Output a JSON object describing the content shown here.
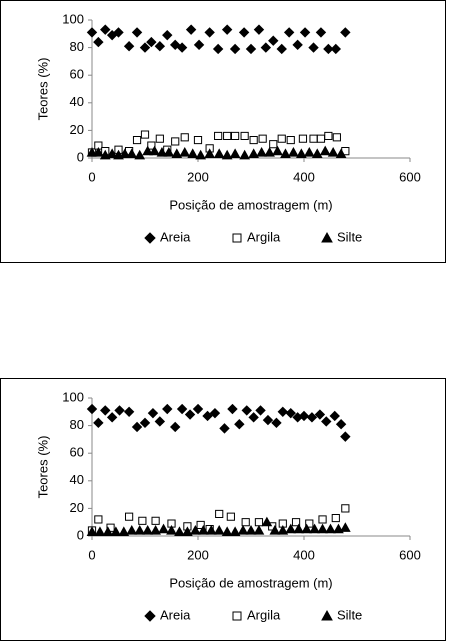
{
  "chart_data": [
    {
      "type": "scatter",
      "xlabel": "Posição de amostragem (m)",
      "ylabel": "Teores (%)",
      "xlim": [
        0,
        600
      ],
      "xticks": [
        0,
        200,
        400,
        600
      ],
      "ylim": [
        0,
        100
      ],
      "yticks": [
        0,
        20,
        40,
        60,
        80,
        100
      ],
      "grid": false,
      "legend": "bottom",
      "series": [
        {
          "name": "Areia",
          "color": "#000000",
          "marker": "diamond",
          "x": [
            0,
            12,
            25,
            38,
            50,
            70,
            85,
            100,
            112,
            128,
            142,
            157,
            170,
            187,
            202,
            222,
            238,
            255,
            270,
            287,
            300,
            315,
            328,
            342,
            358,
            372,
            388,
            402,
            418,
            432,
            446,
            460,
            478
          ],
          "values": [
            91,
            84,
            93,
            89,
            91,
            81,
            91,
            80,
            84,
            81,
            89,
            82,
            80,
            93,
            82,
            91,
            79,
            93,
            79,
            91,
            79,
            93,
            80,
            85,
            79,
            91,
            82,
            91,
            80,
            91,
            79,
            79,
            91
          ]
        },
        {
          "name": "Argila",
          "color": "#000000",
          "marker": "square",
          "x": [
            0,
            12,
            25,
            50,
            70,
            85,
            100,
            112,
            128,
            142,
            157,
            175,
            200,
            222,
            238,
            255,
            270,
            288,
            305,
            322,
            342,
            358,
            375,
            398,
            418,
            432,
            446,
            462,
            478
          ],
          "values": [
            4,
            9,
            5,
            6,
            5,
            13,
            17,
            9,
            14,
            6,
            12,
            15,
            13,
            7,
            16,
            16,
            16,
            16,
            13,
            14,
            10,
            14,
            13,
            14,
            14,
            14,
            16,
            15,
            5
          ]
        },
        {
          "name": "Silte",
          "color": "#000000",
          "marker": "triangle",
          "x": [
            0,
            12,
            25,
            38,
            50,
            62,
            75,
            90,
            105,
            118,
            132,
            145,
            160,
            175,
            190,
            205,
            222,
            240,
            255,
            270,
            288,
            305,
            320,
            335,
            350,
            365,
            380,
            395,
            410,
            425,
            440,
            455,
            470
          ],
          "values": [
            4,
            4,
            2,
            3,
            2,
            3,
            3,
            2,
            5,
            5,
            4,
            4,
            3,
            4,
            3,
            2,
            3,
            3,
            2,
            3,
            2,
            3,
            4,
            4,
            5,
            3,
            4,
            3,
            4,
            3,
            5,
            4,
            3
          ]
        }
      ]
    },
    {
      "type": "scatter",
      "xlabel": "Posição de amostragem (m)",
      "ylabel": "Teores (%)",
      "xlim": [
        0,
        600
      ],
      "xticks": [
        0,
        200,
        400,
        600
      ],
      "ylim": [
        0,
        100
      ],
      "yticks": [
        0,
        20,
        40,
        60,
        80,
        100
      ],
      "grid": false,
      "legend": "bottom",
      "series": [
        {
          "name": "Areia",
          "color": "#000000",
          "marker": "diamond",
          "x": [
            0,
            12,
            25,
            38,
            52,
            70,
            85,
            100,
            115,
            128,
            142,
            157,
            170,
            185,
            200,
            218,
            232,
            250,
            265,
            278,
            292,
            305,
            318,
            332,
            348,
            360,
            375,
            388,
            400,
            415,
            430,
            442,
            458,
            470,
            478
          ],
          "values": [
            92,
            82,
            91,
            86,
            91,
            90,
            79,
            82,
            89,
            83,
            92,
            79,
            92,
            88,
            92,
            87,
            89,
            78,
            92,
            81,
            91,
            86,
            91,
            84,
            82,
            90,
            89,
            86,
            87,
            86,
            88,
            83,
            87,
            81,
            72
          ]
        },
        {
          "name": "Argila",
          "color": "#000000",
          "marker": "square",
          "x": [
            0,
            12,
            35,
            70,
            95,
            120,
            150,
            180,
            205,
            222,
            240,
            262,
            290,
            315,
            340,
            360,
            385,
            410,
            435,
            460,
            478
          ],
          "values": [
            4,
            12,
            6,
            14,
            11,
            11,
            9,
            7,
            8,
            5,
            16,
            14,
            10,
            10,
            7,
            9,
            10,
            9,
            12,
            13,
            20
          ]
        },
        {
          "name": "Silte",
          "color": "#000000",
          "marker": "triangle",
          "x": [
            0,
            15,
            30,
            45,
            60,
            75,
            90,
            105,
            120,
            135,
            150,
            165,
            180,
            195,
            210,
            225,
            240,
            255,
            270,
            285,
            300,
            315,
            330,
            345,
            360,
            375,
            390,
            405,
            420,
            435,
            450,
            465,
            478
          ],
          "values": [
            3,
            3,
            3,
            3,
            3,
            4,
            4,
            4,
            4,
            5,
            4,
            3,
            3,
            4,
            4,
            4,
            4,
            3,
            3,
            4,
            4,
            4,
            10,
            4,
            4,
            5,
            5,
            5,
            5,
            5,
            5,
            5,
            6
          ]
        }
      ]
    }
  ]
}
